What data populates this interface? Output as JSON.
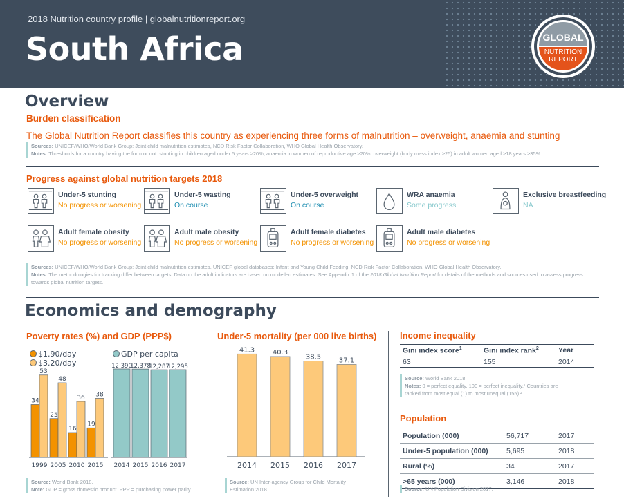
{
  "header": {
    "subtitle": "2018 Nutrition country profile  |  globalnutritionreport.org",
    "title": "South Africa",
    "logo": {
      "top": "GLOBAL",
      "line1": "NUTRITION",
      "line2": "REPORT"
    }
  },
  "overview": {
    "title": "Overview",
    "burden_heading": "Burden classification",
    "burden_text": "The Global Nutrition Report classifies this country as experiencing three forms of malnutrition – overweight, anaemia and stunting",
    "sources_label": "Sources:",
    "sources": "UNICEF/WHO/World Bank Group: Joint child malnutrition estimates, NCD Risk Factor Collaboration, WHO Global Health Observatory.",
    "notes_label": "Notes:",
    "notes": "Thresholds for a country having the form or not: stunting in children aged under 5 years ≥20%; anaemia in women of reproductive age ≥20%; overweight (body mass index ≥25) in adult women aged ≥18 years ≥35%."
  },
  "progress": {
    "heading": "Progress against global nutrition targets 2018",
    "colors": {
      "No progress or worsening": "#f39200",
      "On course": "#1b8cb0",
      "Some progress": "#86c8cc",
      "NA": "#86c8cc"
    },
    "items": [
      {
        "label": "Under-5 stunting",
        "status": "No progress or worsening",
        "icon": "children-icon"
      },
      {
        "label": "Under-5 wasting",
        "status": "On course",
        "icon": "children-icon"
      },
      {
        "label": "Under-5 overweight",
        "status": "On course",
        "icon": "children-icon"
      },
      {
        "label": "WRA anaemia",
        "status": "Some progress",
        "icon": "blood-drop-icon"
      },
      {
        "label": "Exclusive breastfeeding",
        "status": "NA",
        "icon": "breastfeeding-icon"
      },
      {
        "label": "Adult female obesity",
        "status": "No progress or worsening",
        "icon": "adults-icon"
      },
      {
        "label": "Adult male obesity",
        "status": "No progress or worsening",
        "icon": "adults-icon"
      },
      {
        "label": "Adult female diabetes",
        "status": "No progress or worsening",
        "icon": "glucose-meter-icon"
      },
      {
        "label": "Adult male diabetes",
        "status": "No progress or worsening",
        "icon": "glucose-meter-icon"
      }
    ],
    "sources_label": "Sources:",
    "sources": "UNICEF/WHO/World Bank Group: Joint child malnutrition estimates, UNICEF global databases: Infant and Young Child Feeding, NCD Risk Factor Collaboration, WHO Global Health Observatory.",
    "notes_label": "Notes:",
    "notes_a": "The methodologies for tracking differ between targets. Data on the adult indicators are based on modelled estimates. See Appendix 1 of the ",
    "notes_em": "2018 Global Nutrition Report",
    "notes_b": " for details of the methods and sources used to assess progress towards global nutrition targets."
  },
  "economics": {
    "title": "Economics and demography",
    "poverty": {
      "source_label": "Source:",
      "source": "World Bank 2018.",
      "note_label": "Note:",
      "note": "GDP = gross domestic product. PPP = purchasing power parity."
    },
    "mortality": {
      "source_label": "Source:",
      "source": "UN Inter-agency Group for Child Mortality Estimation 2018."
    },
    "inequality": {
      "title": "Income inequality",
      "headers": [
        "Gini index score",
        "Gini index rank",
        "Year"
      ],
      "sup": [
        "1",
        "2",
        ""
      ],
      "row": [
        "63",
        "155",
        "2014"
      ],
      "source_label": "Source:",
      "source": "World Bank 2018.",
      "notes_label": "Notes:",
      "notes": "0 = perfect equality, 100 = perfect inequality.¹ Countries are ranked from most equal (1) to most unequal (155).²"
    },
    "population": {
      "title": "Population",
      "rows": [
        [
          "Population (000)",
          "56,717",
          "2017"
        ],
        [
          "Under-5 population (000)",
          "5,695",
          "2018"
        ],
        [
          "Rural (%)",
          "34",
          "2017"
        ],
        [
          ">65 years (000)",
          "3,146",
          "2018"
        ]
      ],
      "source_label": "Source:",
      "source": "UN Population Division 2017."
    }
  },
  "chart_data": [
    {
      "type": "bar",
      "title": "Poverty rates (%) and GDP (PPP$)",
      "categories": [
        "1999",
        "2005",
        "2010",
        "2015"
      ],
      "series": [
        {
          "name": "$1.90/day",
          "values": [
            34,
            25,
            16,
            19
          ],
          "color": "#f39200"
        },
        {
          "name": "$3.20/day",
          "values": [
            53,
            48,
            36,
            38
          ],
          "color": "#fdc97a"
        }
      ]
    },
    {
      "type": "bar",
      "categories": [
        "2014",
        "2015",
        "2016",
        "2017"
      ],
      "series": [
        {
          "name": "GDP per capita",
          "values": [
            12390,
            12378,
            12287,
            12295
          ],
          "labels": [
            "12,390",
            "12,378",
            "12,287",
            "12,295"
          ],
          "color": "#93c9c8"
        }
      ]
    },
    {
      "type": "bar",
      "title": "Under-5 mortality (per 000 live births)",
      "categories": [
        "2014",
        "2015",
        "2016",
        "2017"
      ],
      "values": [
        41.3,
        40.3,
        38.5,
        37.1
      ],
      "color": "#fdc97a"
    }
  ]
}
